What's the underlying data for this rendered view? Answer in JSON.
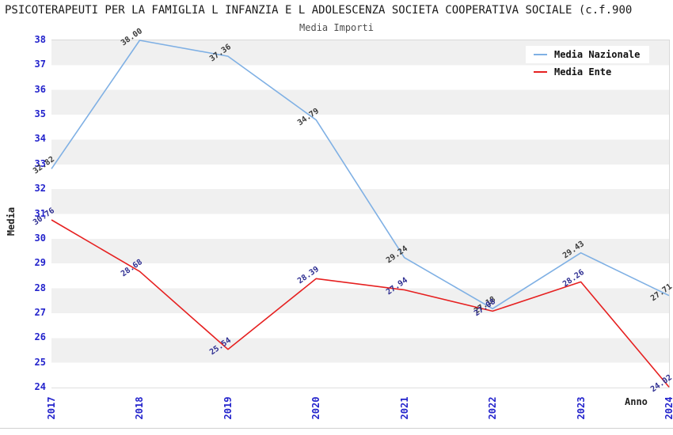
{
  "header": {
    "title": "PSICOTERAPEUTI PER LA FAMIGLIA L INFANZIA E L ADOLESCENZA SOCIETA COOPERATIVA SOCIALE (c.f.900",
    "subtitle": "Media Importi"
  },
  "legend": {
    "items": [
      {
        "label": "Media Nazionale",
        "color": "#7fb0e4"
      },
      {
        "label": "Media Ente",
        "color": "#e62020"
      }
    ]
  },
  "axes": {
    "y_title": "Media",
    "x_title": "Anno",
    "tick_color": "#2323cc",
    "y_ticks": [
      38,
      37,
      36,
      35,
      34,
      33,
      32,
      31,
      30,
      29,
      28,
      27,
      26,
      25,
      24
    ],
    "x_ticks": [
      "2017",
      "2018",
      "2019",
      "2020",
      "2021",
      "2022",
      "2023",
      "2024"
    ]
  },
  "chart_data": {
    "type": "line",
    "title": "Media Importi",
    "xlabel": "Anno",
    "ylabel": "Media",
    "x": [
      "2017",
      "2018",
      "2019",
      "2020",
      "2021",
      "2022",
      "2023",
      "2024"
    ],
    "ylim": [
      24,
      38
    ],
    "grid": "alternating-horizontal-bands",
    "legend_position": "top-right",
    "series": [
      {
        "name": "Media Nazionale",
        "color": "#7fb0e4",
        "label_color": "#3a3a3a",
        "values": [
          32.82,
          38.0,
          37.36,
          34.79,
          29.24,
          27.18,
          29.43,
          27.71
        ]
      },
      {
        "name": "Media Ente",
        "color": "#e62020",
        "label_color": "#2d2d91",
        "values": [
          30.76,
          28.68,
          25.54,
          28.39,
          27.94,
          27.08,
          28.26,
          24.02
        ]
      }
    ]
  }
}
